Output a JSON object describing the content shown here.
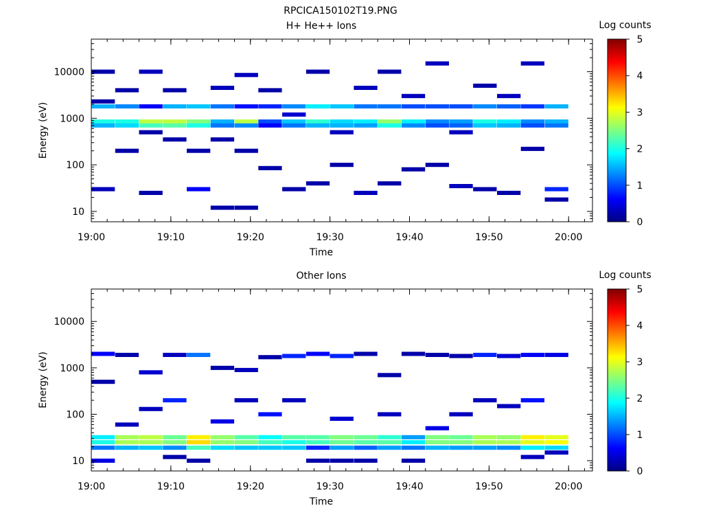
{
  "figure_title": "RPCICA150102T19.PNG",
  "chart_data": [
    {
      "type": "heatmap",
      "title": "H+ He++ Ions",
      "xlabel": "Time",
      "ylabel": "Energy (eV)",
      "x_ticks": [
        "19:00",
        "19:10",
        "19:20",
        "19:30",
        "19:40",
        "19:50",
        "20:00"
      ],
      "x_range": [
        "19:00",
        "20:03"
      ],
      "y_ticks": [
        10,
        100,
        1000,
        10000
      ],
      "y_scale": "log",
      "y_range": [
        6,
        50000
      ],
      "colorbar": {
        "label": "Log counts",
        "ticks": [
          0,
          1,
          2,
          3,
          4,
          5
        ],
        "range": [
          0,
          5
        ]
      },
      "columns": [
        {
          "t": "19:00",
          "bins": [
            [
              1800,
              1.5
            ],
            [
              850,
              2.0
            ],
            [
              700,
              1.5
            ],
            [
              10000,
              0.2
            ],
            [
              30,
              0.3
            ],
            [
              2300,
              0.2
            ]
          ]
        },
        {
          "t": "19:03",
          "bins": [
            [
              1800,
              1.3
            ],
            [
              850,
              2.0
            ],
            [
              700,
              1.7
            ],
            [
              4000,
              0.2
            ],
            [
              200,
              0.2
            ]
          ]
        },
        {
          "t": "19:06",
          "bins": [
            [
              1800,
              0.6
            ],
            [
              850,
              2.8
            ],
            [
              700,
              2.2
            ],
            [
              10000,
              0.3
            ],
            [
              25,
              0.2
            ],
            [
              500,
              0.2
            ]
          ]
        },
        {
          "t": "19:09",
          "bins": [
            [
              1800,
              1.5
            ],
            [
              850,
              2.8
            ],
            [
              700,
              2.3
            ],
            [
              4000,
              0.2
            ],
            [
              350,
              0.2
            ]
          ]
        },
        {
          "t": "19:12",
          "bins": [
            [
              1800,
              1.6
            ],
            [
              850,
              2.5
            ],
            [
              700,
              2.0
            ],
            [
              30,
              0.6
            ],
            [
              200,
              0.2
            ]
          ]
        },
        {
          "t": "19:15",
          "bins": [
            [
              1800,
              1.2
            ],
            [
              850,
              1.5
            ],
            [
              700,
              1.2
            ],
            [
              4500,
              0.3
            ],
            [
              12,
              0.2
            ],
            [
              350,
              0.2
            ]
          ]
        },
        {
          "t": "19:18",
          "bins": [
            [
              1800,
              0.7
            ],
            [
              850,
              2.8
            ],
            [
              700,
              1.3
            ],
            [
              8500,
              0.3
            ],
            [
              12,
              0.2
            ],
            [
              200,
              0.2
            ]
          ]
        },
        {
          "t": "19:21",
          "bins": [
            [
              1800,
              0.8
            ],
            [
              850,
              1.0
            ],
            [
              700,
              0.6
            ],
            [
              4000,
              0.2
            ],
            [
              85,
              0.2
            ]
          ]
        },
        {
          "t": "19:24",
          "bins": [
            [
              1800,
              1.3
            ],
            [
              850,
              1.6
            ],
            [
              700,
              1.2
            ],
            [
              1200,
              0.4
            ],
            [
              30,
              0.2
            ]
          ]
        },
        {
          "t": "19:27",
          "bins": [
            [
              1800,
              1.8
            ],
            [
              850,
              2.1
            ],
            [
              700,
              1.5
            ],
            [
              10000,
              0.2
            ],
            [
              40,
              0.2
            ]
          ]
        },
        {
          "t": "19:30",
          "bins": [
            [
              1800,
              1.6
            ],
            [
              850,
              1.7
            ],
            [
              700,
              1.5
            ],
            [
              500,
              0.3
            ],
            [
              100,
              0.2
            ]
          ]
        },
        {
          "t": "19:33",
          "bins": [
            [
              1800,
              1.2
            ],
            [
              850,
              1.8
            ],
            [
              700,
              1.4
            ],
            [
              4500,
              0.3
            ],
            [
              25,
              0.3
            ]
          ]
        },
        {
          "t": "19:36",
          "bins": [
            [
              1800,
              1.2
            ],
            [
              850,
              2.6
            ],
            [
              700,
              2.0
            ],
            [
              10000,
              0.2
            ],
            [
              40,
              0.2
            ]
          ]
        },
        {
          "t": "19:39",
          "bins": [
            [
              1800,
              1.0
            ],
            [
              850,
              1.8
            ],
            [
              700,
              1.3
            ],
            [
              3000,
              0.3
            ],
            [
              80,
              0.2
            ]
          ]
        },
        {
          "t": "19:42",
          "bins": [
            [
              1800,
              1.0
            ],
            [
              850,
              1.3
            ],
            [
              700,
              1.0
            ],
            [
              15000,
              0.3
            ],
            [
              100,
              0.2
            ]
          ]
        },
        {
          "t": "19:45",
          "bins": [
            [
              1800,
              1.0
            ],
            [
              850,
              1.4
            ],
            [
              700,
              1.1
            ],
            [
              500,
              0.3
            ],
            [
              35,
              0.3
            ]
          ]
        },
        {
          "t": "19:48",
          "bins": [
            [
              1800,
              1.3
            ],
            [
              850,
              2.0
            ],
            [
              700,
              1.6
            ],
            [
              5000,
              0.2
            ],
            [
              30,
              0.2
            ]
          ]
        },
        {
          "t": "19:51",
          "bins": [
            [
              1800,
              1.1
            ],
            [
              850,
              1.8
            ],
            [
              700,
              1.5
            ],
            [
              3000,
              0.3
            ],
            [
              25,
              0.2
            ]
          ]
        },
        {
          "t": "19:54",
          "bins": [
            [
              1800,
              0.9
            ],
            [
              850,
              1.3
            ],
            [
              700,
              1.0
            ],
            [
              15000,
              0.3
            ],
            [
              220,
              0.2
            ]
          ]
        },
        {
          "t": "19:57",
          "bins": [
            [
              1800,
              1.5
            ],
            [
              850,
              1.5
            ],
            [
              700,
              1.2
            ],
            [
              30,
              0.8
            ],
            [
              18,
              0.2
            ]
          ]
        }
      ]
    },
    {
      "type": "heatmap",
      "title": "Other Ions",
      "xlabel": "Time",
      "ylabel": "Energy (eV)",
      "x_ticks": [
        "19:00",
        "19:10",
        "19:20",
        "19:30",
        "19:40",
        "19:50",
        "20:00"
      ],
      "x_range": [
        "19:00",
        "20:03"
      ],
      "y_ticks": [
        10,
        100,
        1000,
        10000
      ],
      "y_scale": "log",
      "y_range": [
        6,
        50000
      ],
      "colorbar": {
        "label": "Log counts",
        "ticks": [
          0,
          1,
          2,
          3,
          4,
          5
        ],
        "range": [
          0,
          5
        ]
      },
      "columns": [
        {
          "t": "19:00",
          "bins": [
            [
              2000,
              0.6
            ],
            [
              32,
              1.8
            ],
            [
              25,
              2.0
            ],
            [
              19,
              1.2
            ],
            [
              10,
              0.5
            ],
            [
              500,
              0.2
            ]
          ]
        },
        {
          "t": "19:03",
          "bins": [
            [
              1900,
              0.2
            ],
            [
              32,
              2.7
            ],
            [
              25,
              2.7
            ],
            [
              19,
              1.5
            ],
            [
              60,
              0.3
            ]
          ]
        },
        {
          "t": "19:06",
          "bins": [
            [
              800,
              0.4
            ],
            [
              32,
              2.8
            ],
            [
              25,
              2.7
            ],
            [
              19,
              1.6
            ],
            [
              130,
              0.3
            ]
          ]
        },
        {
          "t": "19:09",
          "bins": [
            [
              1900,
              0.3
            ],
            [
              32,
              2.4
            ],
            [
              25,
              2.5
            ],
            [
              19,
              1.3
            ],
            [
              200,
              0.8
            ],
            [
              12,
              0.2
            ]
          ]
        },
        {
          "t": "19:12",
          "bins": [
            [
              1900,
              1.2
            ],
            [
              32,
              3.2
            ],
            [
              25,
              3.3
            ],
            [
              19,
              2.2
            ],
            [
              10,
              0.2
            ]
          ]
        },
        {
          "t": "19:15",
          "bins": [
            [
              1000,
              0.2
            ],
            [
              32,
              2.6
            ],
            [
              25,
              2.6
            ],
            [
              19,
              1.7
            ],
            [
              70,
              0.5
            ]
          ]
        },
        {
          "t": "19:18",
          "bins": [
            [
              900,
              0.3
            ],
            [
              32,
              2.3
            ],
            [
              25,
              2.5
            ],
            [
              19,
              1.6
            ],
            [
              200,
              0.3
            ]
          ]
        },
        {
          "t": "19:21",
          "bins": [
            [
              1700,
              0.2
            ],
            [
              32,
              1.9
            ],
            [
              25,
              2.2
            ],
            [
              19,
              1.6
            ],
            [
              100,
              0.7
            ]
          ]
        },
        {
          "t": "19:24",
          "bins": [
            [
              1800,
              0.8
            ],
            [
              32,
              2.3
            ],
            [
              25,
              2.0
            ],
            [
              19,
              1.6
            ],
            [
              200,
              0.3
            ]
          ]
        },
        {
          "t": "19:27",
          "bins": [
            [
              2000,
              0.6
            ],
            [
              32,
              2.3
            ],
            [
              25,
              2.2
            ],
            [
              19,
              0.8
            ],
            [
              10,
              0.2
            ]
          ]
        },
        {
          "t": "19:30",
          "bins": [
            [
              1800,
              0.8
            ],
            [
              32,
              2.5
            ],
            [
              25,
              2.4
            ],
            [
              19,
              1.4
            ],
            [
              80,
              0.4
            ],
            [
              10,
              0.2
            ]
          ]
        },
        {
          "t": "19:33",
          "bins": [
            [
              2000,
              0.2
            ],
            [
              32,
              2.4
            ],
            [
              25,
              2.3
            ],
            [
              19,
              1.1
            ],
            [
              10,
              0.2
            ]
          ]
        },
        {
          "t": "19:36",
          "bins": [
            [
              700,
              0.2
            ],
            [
              32,
              2.1
            ],
            [
              25,
              2.3
            ],
            [
              19,
              1.4
            ],
            [
              100,
              0.3
            ]
          ]
        },
        {
          "t": "19:39",
          "bins": [
            [
              2000,
              0.2
            ],
            [
              32,
              1.4
            ],
            [
              25,
              1.8
            ],
            [
              19,
              1.2
            ],
            [
              10,
              0.2
            ]
          ]
        },
        {
          "t": "19:42",
          "bins": [
            [
              1900,
              0.2
            ],
            [
              32,
              2.5
            ],
            [
              25,
              2.5
            ],
            [
              19,
              1.5
            ],
            [
              50,
              0.5
            ]
          ]
        },
        {
          "t": "19:45",
          "bins": [
            [
              1800,
              0.2
            ],
            [
              32,
              2.4
            ],
            [
              25,
              2.5
            ],
            [
              19,
              1.4
            ],
            [
              100,
              0.3
            ]
          ]
        },
        {
          "t": "19:48",
          "bins": [
            [
              1900,
              0.8
            ],
            [
              32,
              2.7
            ],
            [
              25,
              2.7
            ],
            [
              19,
              1.4
            ],
            [
              200,
              0.3
            ]
          ]
        },
        {
          "t": "19:51",
          "bins": [
            [
              1800,
              0.4
            ],
            [
              32,
              2.6
            ],
            [
              25,
              2.7
            ],
            [
              19,
              1.3
            ],
            [
              150,
              0.3
            ]
          ]
        },
        {
          "t": "19:54",
          "bins": [
            [
              1900,
              0.6
            ],
            [
              32,
              3.2
            ],
            [
              25,
              3.0
            ],
            [
              19,
              1.8
            ],
            [
              200,
              0.7
            ],
            [
              12,
              0.3
            ]
          ]
        },
        {
          "t": "19:57",
          "bins": [
            [
              1900,
              0.5
            ],
            [
              32,
              3.0
            ],
            [
              25,
              3.1
            ],
            [
              19,
              1.7
            ],
            [
              15,
              0.3
            ]
          ]
        }
      ]
    }
  ]
}
